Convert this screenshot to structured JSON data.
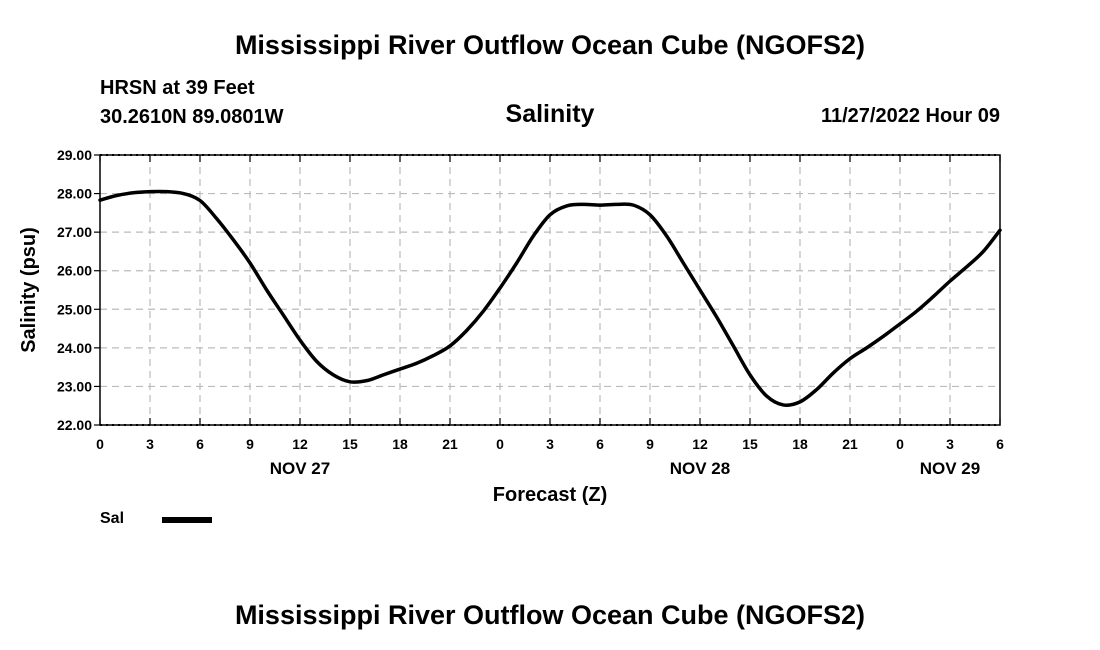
{
  "header": {
    "title": "Mississippi River Outflow Ocean Cube (NGOFS2)",
    "station": "HRSN at 39 Feet",
    "coordinates": "30.2610N  89.0801W",
    "datetime": "11/27/2022 Hour 09"
  },
  "footer": {
    "title": "Mississippi River Outflow Ocean Cube (NGOFS2)"
  },
  "legend": {
    "label": "Sal"
  },
  "chart_data": {
    "type": "line",
    "title": "Salinity",
    "xlabel": "Forecast (Z)",
    "ylabel": "Salinity (psu)",
    "xlim": [
      0,
      54
    ],
    "ylim": [
      22,
      29
    ],
    "yticks": [
      "22.00",
      "23.00",
      "24.00",
      "25.00",
      "26.00",
      "27.00",
      "28.00",
      "29.00"
    ],
    "xtick_labels": [
      "0",
      "3",
      "6",
      "9",
      "12",
      "15",
      "18",
      "21",
      "0",
      "3",
      "6",
      "9",
      "12",
      "15",
      "18",
      "21",
      "0",
      "3",
      "6"
    ],
    "date_labels": [
      {
        "hour": 12,
        "label": "NOV 27"
      },
      {
        "hour": 36,
        "label": "NOV 28"
      },
      {
        "hour": 51,
        "label": "NOV 29"
      }
    ],
    "grid": true,
    "line_color": "#000000",
    "series": [
      {
        "name": "Sal",
        "x": [
          0,
          1,
          2,
          3,
          4,
          5,
          6,
          7,
          8,
          9,
          10,
          11,
          12,
          13,
          14,
          15,
          16,
          17,
          18,
          19,
          20,
          21,
          22,
          23,
          24,
          25,
          26,
          27,
          28,
          29,
          30,
          31,
          32,
          33,
          34,
          35,
          36,
          37,
          38,
          39,
          40,
          41,
          42,
          43,
          44,
          45,
          46,
          47,
          48,
          49,
          50,
          51,
          52,
          53,
          54
        ],
        "values": [
          27.83,
          27.95,
          28.02,
          28.05,
          28.05,
          28.0,
          27.82,
          27.35,
          26.8,
          26.2,
          25.5,
          24.85,
          24.2,
          23.65,
          23.3,
          23.12,
          23.15,
          23.3,
          23.45,
          23.6,
          23.8,
          24.05,
          24.45,
          24.95,
          25.55,
          26.2,
          26.9,
          27.45,
          27.68,
          27.72,
          27.7,
          27.72,
          27.7,
          27.45,
          26.9,
          26.2,
          25.5,
          24.8,
          24.05,
          23.3,
          22.75,
          22.52,
          22.6,
          22.92,
          23.35,
          23.72,
          24.0,
          24.3,
          24.62,
          24.95,
          25.33,
          25.73,
          26.1,
          26.5,
          27.05
        ]
      }
    ]
  }
}
